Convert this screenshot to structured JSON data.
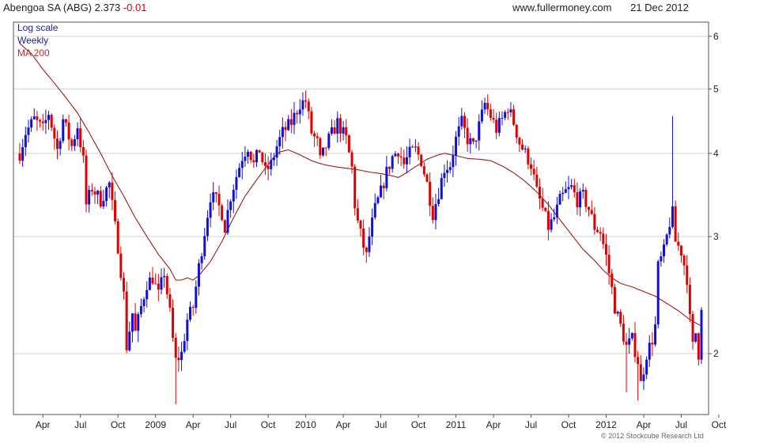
{
  "header": {
    "title": "Abengoa SA (ABG)",
    "price": "2.373",
    "change": "-0.01",
    "site": "www.fullermoney.com",
    "date": "21 Dec 2012"
  },
  "copyright": "© 2012 Stockcube Research Ltd",
  "colors": {
    "up": "#1010d8",
    "down": "#e00000",
    "ma": "#9b1b1b",
    "grid": "#d3d3d3"
  },
  "chart_data": {
    "type": "candlestick",
    "scale": "log",
    "ylim": [
      1.62,
      6.3
    ],
    "grid": true,
    "legend": {
      "placement": "top-left",
      "items": [
        {
          "label": "Log scale",
          "color": "#1a1a9e"
        },
        {
          "label": "Weekly",
          "color": "#1a1a9e"
        },
        {
          "label": "MA 200",
          "color": "#b03030"
        }
      ]
    },
    "y_ticks": [
      {
        "value": 2,
        "label": "2"
      },
      {
        "value": 3,
        "label": "3"
      },
      {
        "value": 4,
        "label": "4"
      },
      {
        "value": 5,
        "label": "5"
      },
      {
        "value": 6,
        "label": "6"
      }
    ],
    "x_ticks": [
      {
        "week": 8,
        "label": "Apr"
      },
      {
        "week": 21,
        "label": "Jul"
      },
      {
        "week": 34,
        "label": "Oct"
      },
      {
        "week": 47,
        "label": "2009"
      },
      {
        "week": 60,
        "label": "Apr"
      },
      {
        "week": 73,
        "label": "Jul"
      },
      {
        "week": 86,
        "label": "Oct"
      },
      {
        "week": 99,
        "label": "2010"
      },
      {
        "week": 112,
        "label": "Apr"
      },
      {
        "week": 125,
        "label": "Jul"
      },
      {
        "week": 138,
        "label": "Oct"
      },
      {
        "week": 151,
        "label": "2011"
      },
      {
        "week": 164,
        "label": "Apr"
      },
      {
        "week": 177,
        "label": "Jul"
      },
      {
        "week": 190,
        "label": "Oct"
      },
      {
        "week": 203,
        "label": "2012"
      },
      {
        "week": 216,
        "label": "Apr"
      },
      {
        "week": 229,
        "label": "Jul"
      },
      {
        "week": 242,
        "label": "Oct"
      }
    ],
    "price_path": [
      [
        0,
        4.0
      ],
      [
        2,
        4.3
      ],
      [
        5,
        4.5
      ],
      [
        8,
        4.35
      ],
      [
        10,
        4.6
      ],
      [
        13,
        4.05
      ],
      [
        15,
        4.5
      ],
      [
        18,
        4.1
      ],
      [
        20,
        4.4
      ],
      [
        22,
        3.9
      ],
      [
        23,
        3.35
      ],
      [
        25,
        3.55
      ],
      [
        28,
        3.4
      ],
      [
        31,
        3.6
      ],
      [
        33,
        3.1
      ],
      [
        34,
        2.9
      ],
      [
        36,
        2.45
      ],
      [
        37,
        2.05
      ],
      [
        39,
        2.3
      ],
      [
        40,
        2.15
      ],
      [
        42,
        2.35
      ],
      [
        44,
        2.55
      ],
      [
        46,
        2.6
      ],
      [
        48,
        2.45
      ],
      [
        50,
        2.65
      ],
      [
        52,
        2.3
      ],
      [
        53,
        2.1
      ],
      [
        54,
        1.95
      ],
      [
        56,
        2.0
      ],
      [
        58,
        2.25
      ],
      [
        60,
        2.35
      ],
      [
        62,
        2.7
      ],
      [
        64,
        3.05
      ],
      [
        66,
        3.45
      ],
      [
        68,
        3.4
      ],
      [
        70,
        3.25
      ],
      [
        71,
        3.1
      ],
      [
        73,
        3.45
      ],
      [
        75,
        3.7
      ],
      [
        77,
        3.95
      ],
      [
        79,
        4.1
      ],
      [
        81,
        3.85
      ],
      [
        83,
        4.05
      ],
      [
        85,
        3.75
      ],
      [
        87,
        3.85
      ],
      [
        89,
        4.1
      ],
      [
        91,
        4.3
      ],
      [
        94,
        4.45
      ],
      [
        97,
        4.75
      ],
      [
        99,
        4.8
      ],
      [
        101,
        4.3
      ],
      [
        103,
        4.15
      ],
      [
        104,
        3.9
      ],
      [
        107,
        4.2
      ],
      [
        110,
        4.45
      ],
      [
        113,
        4.2
      ],
      [
        115,
        3.8
      ],
      [
        116,
        3.35
      ],
      [
        117,
        3.15
      ],
      [
        119,
        2.9
      ],
      [
        120,
        2.8
      ],
      [
        121,
        3.0
      ],
      [
        123,
        3.3
      ],
      [
        125,
        3.5
      ],
      [
        127,
        3.75
      ],
      [
        129,
        3.95
      ],
      [
        131,
        4.05
      ],
      [
        133,
        3.85
      ],
      [
        135,
        4.0
      ],
      [
        137,
        4.05
      ],
      [
        139,
        3.9
      ],
      [
        141,
        3.6
      ],
      [
        143,
        3.25
      ],
      [
        145,
        3.5
      ],
      [
        147,
        3.8
      ],
      [
        149,
        3.85
      ],
      [
        151,
        4.2
      ],
      [
        153,
        4.45
      ],
      [
        155,
        4.2
      ],
      [
        157,
        4.1
      ],
      [
        159,
        4.4
      ],
      [
        161,
        4.75
      ],
      [
        163,
        4.55
      ],
      [
        165,
        4.35
      ],
      [
        167,
        4.5
      ],
      [
        169,
        4.7
      ],
      [
        171,
        4.45
      ],
      [
        173,
        4.15
      ],
      [
        175,
        4.0
      ],
      [
        177,
        3.85
      ],
      [
        179,
        3.5
      ],
      [
        181,
        3.3
      ],
      [
        183,
        3.1
      ],
      [
        185,
        3.2
      ],
      [
        187,
        3.4
      ],
      [
        189,
        3.5
      ],
      [
        191,
        3.55
      ],
      [
        193,
        3.4
      ],
      [
        195,
        3.45
      ],
      [
        197,
        3.3
      ],
      [
        199,
        3.1
      ],
      [
        201,
        3.05
      ],
      [
        203,
        2.8
      ],
      [
        205,
        2.5
      ],
      [
        206,
        2.35
      ],
      [
        208,
        2.2
      ],
      [
        210,
        2.05
      ],
      [
        212,
        2.1
      ],
      [
        214,
        1.95
      ],
      [
        215,
        1.8
      ],
      [
        217,
        2.0
      ],
      [
        219,
        2.1
      ],
      [
        220,
        2.2
      ],
      [
        221,
        2.7
      ],
      [
        223,
        2.85
      ],
      [
        225,
        3.15
      ],
      [
        226,
        3.25
      ],
      [
        227,
        2.95
      ],
      [
        229,
        2.85
      ],
      [
        231,
        2.6
      ],
      [
        232,
        2.25
      ],
      [
        233,
        2.05
      ],
      [
        234,
        2.15
      ],
      [
        235,
        2.0
      ],
      [
        236,
        2.373
      ]
    ],
    "ma200": [
      [
        0,
        5.85
      ],
      [
        4,
        5.65
      ],
      [
        8,
        5.35
      ],
      [
        12,
        5.1
      ],
      [
        16,
        4.85
      ],
      [
        20,
        4.6
      ],
      [
        24,
        4.3
      ],
      [
        28,
        4.0
      ],
      [
        32,
        3.7
      ],
      [
        36,
        3.45
      ],
      [
        40,
        3.2
      ],
      [
        44,
        3.0
      ],
      [
        48,
        2.82
      ],
      [
        52,
        2.68
      ],
      [
        54,
        2.58
      ],
      [
        56,
        2.58
      ],
      [
        58,
        2.6
      ],
      [
        60,
        2.58
      ],
      [
        62,
        2.62
      ],
      [
        66,
        2.75
      ],
      [
        70,
        2.95
      ],
      [
        74,
        3.2
      ],
      [
        78,
        3.45
      ],
      [
        82,
        3.65
      ],
      [
        86,
        3.85
      ],
      [
        88,
        3.95
      ],
      [
        90,
        4.02
      ],
      [
        93,
        4.05
      ],
      [
        97,
        3.98
      ],
      [
        101,
        3.9
      ],
      [
        105,
        3.85
      ],
      [
        109,
        3.82
      ],
      [
        113,
        3.8
      ],
      [
        117,
        3.78
      ],
      [
        121,
        3.75
      ],
      [
        125,
        3.73
      ],
      [
        129,
        3.7
      ],
      [
        131,
        3.68
      ],
      [
        133,
        3.72
      ],
      [
        137,
        3.82
      ],
      [
        141,
        3.92
      ],
      [
        145,
        3.98
      ],
      [
        147,
        4.0
      ],
      [
        151,
        3.97
      ],
      [
        155,
        3.93
      ],
      [
        159,
        3.92
      ],
      [
        163,
        3.9
      ],
      [
        167,
        3.83
      ],
      [
        171,
        3.74
      ],
      [
        175,
        3.63
      ],
      [
        179,
        3.5
      ],
      [
        183,
        3.35
      ],
      [
        187,
        3.18
      ],
      [
        191,
        3.02
      ],
      [
        195,
        2.87
      ],
      [
        199,
        2.76
      ],
      [
        202,
        2.67
      ],
      [
        205,
        2.6
      ],
      [
        208,
        2.55
      ],
      [
        212,
        2.52
      ],
      [
        216,
        2.48
      ],
      [
        220,
        2.44
      ],
      [
        224,
        2.38
      ],
      [
        228,
        2.32
      ],
      [
        232,
        2.25
      ],
      [
        236,
        2.2
      ]
    ],
    "spikes": [
      {
        "week": 210,
        "low": 1.75
      },
      {
        "week": 214,
        "low": 1.7
      },
      {
        "week": 226,
        "high": 4.55
      },
      {
        "week": 54,
        "low": 1.68
      }
    ]
  }
}
